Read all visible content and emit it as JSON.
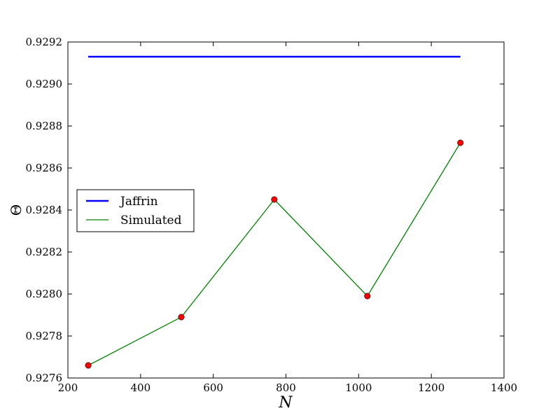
{
  "chart_data": {
    "type": "line",
    "xlabel": "N",
    "ylabel": "Θ",
    "xlim": [
      200,
      1400
    ],
    "ylim": [
      0.9276,
      0.9292
    ],
    "xticks": [
      200,
      400,
      600,
      800,
      1000,
      1200,
      1400
    ],
    "yticks": [
      "0.9276",
      "0.9278",
      "0.9280",
      "0.9282",
      "0.9284",
      "0.9286",
      "0.9288",
      "0.9290",
      "0.9292"
    ],
    "grid": false,
    "legend_position": "center-left",
    "series": [
      {
        "name": "Jaffrin",
        "color": "#0000ff",
        "marker": "none",
        "x": [
          256,
          1280
        ],
        "y": [
          0.92913,
          0.92913
        ]
      },
      {
        "name": "Simulated",
        "color": "#008000",
        "marker": "circle",
        "marker_color": "#ff0000",
        "x": [
          256,
          512,
          768,
          1024,
          1280
        ],
        "y": [
          0.92766,
          0.92789,
          0.92845,
          0.92799,
          0.92872
        ]
      }
    ]
  }
}
